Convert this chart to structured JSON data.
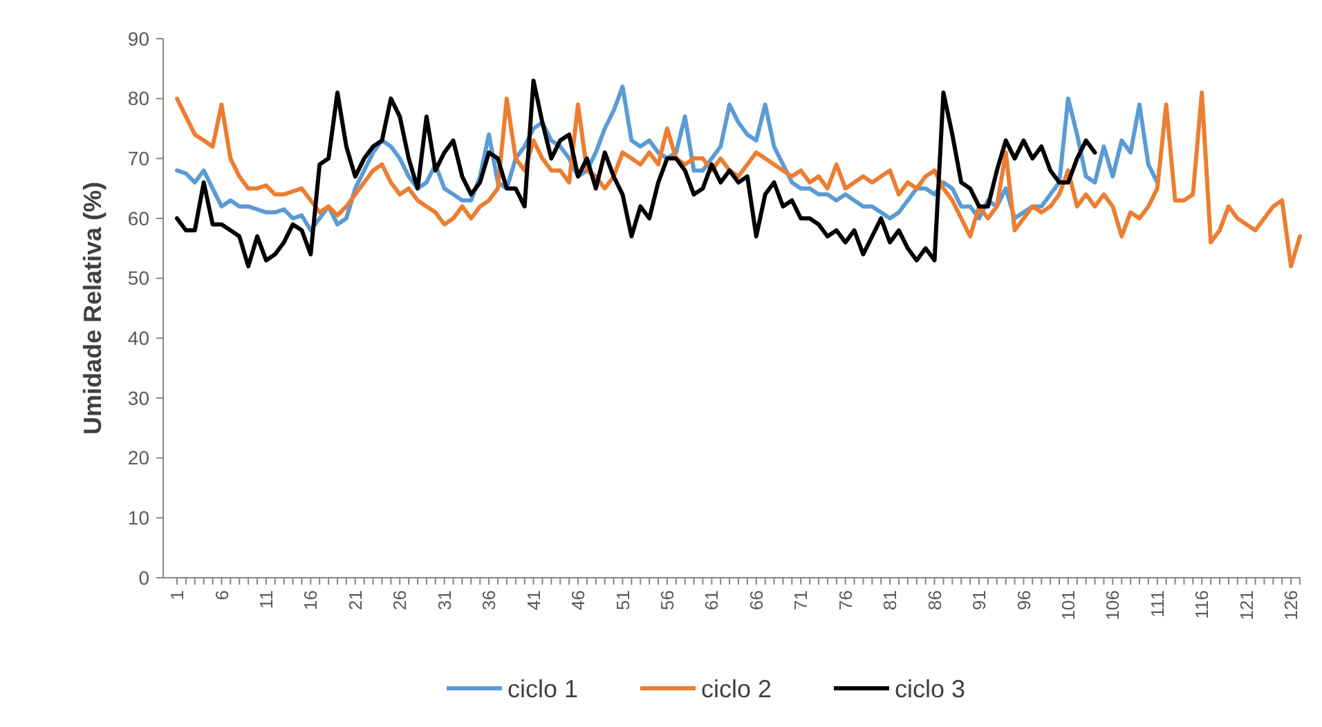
{
  "chart_data": {
    "type": "line",
    "ylabel": "Umidade Relativa (%)",
    "categories": [
      "1",
      null,
      null,
      null,
      null,
      "6",
      null,
      null,
      null,
      null,
      "11",
      null,
      null,
      null,
      null,
      "16",
      null,
      null,
      null,
      null,
      "21",
      null,
      null,
      null,
      null,
      "26",
      null,
      null,
      null,
      null,
      "31",
      null,
      null,
      null,
      null,
      "36",
      null,
      null,
      null,
      null,
      "41",
      null,
      null,
      null,
      null,
      "46",
      null,
      null,
      null,
      null,
      "51",
      null,
      null,
      null,
      null,
      "56",
      null,
      null,
      null,
      null,
      "61",
      null,
      null,
      null,
      null,
      "66",
      null,
      null,
      null,
      null,
      "71",
      null,
      null,
      null,
      null,
      "76",
      null,
      null,
      null,
      null,
      "81",
      null,
      null,
      null,
      null,
      "86",
      null,
      null,
      null,
      null,
      "91",
      null,
      null,
      null,
      null,
      "96",
      null,
      null,
      null,
      null,
      "101",
      null,
      null,
      null,
      null,
      "106",
      null,
      null,
      null,
      null,
      "111",
      null,
      null,
      null,
      null,
      "116",
      null,
      null,
      null,
      null,
      "121",
      null,
      null,
      null,
      null,
      "126",
      null
    ],
    "ylim": [
      0,
      90
    ],
    "yticks": [
      0,
      10,
      20,
      30,
      40,
      50,
      60,
      70,
      80,
      90
    ],
    "grid": false,
    "legend": "bottom",
    "series": [
      {
        "name": "ciclo 1",
        "color": "#5b9bd5",
        "values": [
          68,
          67.5,
          66,
          68,
          65,
          62,
          63,
          62,
          62,
          61.5,
          61,
          61,
          61.5,
          60,
          60.5,
          58,
          60,
          62,
          59,
          60,
          65,
          68,
          71,
          73,
          72,
          70,
          67,
          65,
          66,
          69,
          65,
          64,
          63,
          63,
          67,
          74,
          66,
          65,
          70,
          72,
          75,
          76,
          73,
          72,
          70,
          67,
          68,
          71,
          75,
          78,
          82,
          73,
          72,
          73,
          71,
          70,
          71,
          77,
          68,
          68,
          70,
          72,
          79,
          76,
          74,
          73,
          79,
          72,
          69,
          66,
          65,
          65,
          64,
          64,
          63,
          64,
          63,
          62,
          62,
          61,
          60,
          61,
          63,
          65,
          65,
          64,
          66,
          65,
          62,
          62,
          60,
          63,
          62,
          65,
          60,
          61,
          62,
          62,
          64,
          66,
          80,
          74,
          67,
          66,
          72,
          67,
          73,
          71,
          79,
          69,
          66,
          null,
          null,
          null,
          null,
          null,
          null,
          null,
          null,
          null,
          null,
          null,
          null,
          null,
          null,
          null,
          null
        ]
      },
      {
        "name": "ciclo 2",
        "color": "#ed7d31",
        "values": [
          80,
          77,
          74,
          73,
          72,
          79,
          70,
          67,
          65,
          65,
          65.5,
          64,
          64,
          64.5,
          65,
          63,
          61,
          62,
          60.5,
          62,
          64,
          66,
          68,
          69,
          66,
          64,
          65,
          63,
          62,
          61,
          59,
          60,
          62,
          60,
          62,
          63,
          65,
          80,
          70,
          68,
          73,
          70,
          68,
          68,
          66,
          79,
          68,
          67,
          65,
          67,
          71,
          70,
          69,
          71,
          69,
          75,
          70,
          69,
          70,
          70,
          68,
          70,
          68,
          67,
          69,
          71,
          70,
          69,
          68,
          67,
          68,
          66,
          67,
          65,
          69,
          65,
          66,
          67,
          66,
          67,
          68,
          64,
          66,
          65,
          67,
          68,
          65,
          63,
          60,
          57,
          62,
          60,
          62,
          71,
          58,
          60,
          62,
          61,
          62,
          64,
          68,
          62,
          64,
          62,
          64,
          62,
          57,
          61,
          60,
          62,
          65,
          79,
          63,
          63,
          64,
          81,
          56,
          58,
          62,
          60,
          59,
          58,
          60,
          62,
          63,
          52,
          57
        ]
      },
      {
        "name": "ciclo 3",
        "color": "#000000",
        "values": [
          60,
          58,
          58,
          66,
          59,
          59,
          58,
          57,
          52,
          57,
          53,
          54,
          56,
          59,
          58,
          54,
          69,
          70,
          81,
          72,
          67,
          70,
          72,
          73,
          80,
          77,
          70,
          65,
          77,
          68,
          71,
          73,
          67,
          64,
          66,
          71,
          70,
          65,
          65,
          62,
          83,
          76,
          70,
          73,
          74,
          67,
          70,
          65,
          71,
          67,
          64,
          57,
          62,
          60,
          66,
          70,
          70,
          68,
          64,
          65,
          69,
          66,
          68,
          66,
          67,
          57,
          64,
          66,
          62,
          63,
          60,
          60,
          59,
          57,
          58,
          56,
          58,
          54,
          57,
          60,
          56,
          58,
          55,
          53,
          55,
          53,
          81,
          74,
          66,
          65,
          62,
          62,
          68,
          73,
          70,
          73,
          70,
          72,
          68,
          66,
          66,
          70,
          73,
          71,
          null,
          null,
          null,
          null,
          null,
          null,
          null,
          null,
          null,
          null,
          null,
          null,
          null,
          null,
          null,
          null,
          null,
          null,
          null,
          null,
          null,
          null,
          null
        ]
      }
    ]
  }
}
